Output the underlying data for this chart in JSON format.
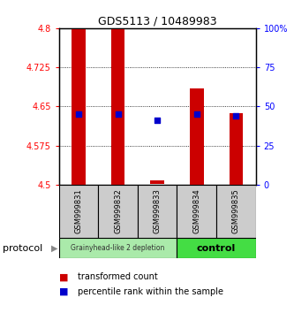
{
  "title": "GDS5113 / 10489983",
  "samples": [
    "GSM999831",
    "GSM999832",
    "GSM999833",
    "GSM999834",
    "GSM999835"
  ],
  "bar_bottom": [
    4.5,
    4.5,
    4.502,
    4.5,
    4.5
  ],
  "bar_top": [
    4.8,
    4.8,
    4.508,
    4.685,
    4.637
  ],
  "blue_y": [
    4.636,
    4.636,
    4.623,
    4.636,
    4.632
  ],
  "ylim_left": [
    4.5,
    4.8
  ],
  "ylim_right": [
    0,
    100
  ],
  "yticks_left": [
    4.5,
    4.575,
    4.65,
    4.725,
    4.8
  ],
  "yticks_right": [
    0,
    25,
    50,
    75,
    100
  ],
  "ytick_labels_left": [
    "4.5",
    "4.575",
    "4.65",
    "4.725",
    "4.8"
  ],
  "ytick_labels_right": [
    "0",
    "25",
    "50",
    "75",
    "100%"
  ],
  "bar_color": "#cc0000",
  "blue_color": "#0000cc",
  "bar_width": 0.35,
  "group_labels": [
    "Grainyhead-like 2 depletion",
    "control"
  ],
  "group_colors": [
    "#aaeaaa",
    "#44dd44"
  ],
  "protocol_label": "protocol",
  "legend_red": "transformed count",
  "legend_blue": "percentile rank within the sample",
  "title_fontsize": 9,
  "tick_fontsize": 7,
  "sample_fontsize": 6,
  "legend_fontsize": 7,
  "protocol_fontsize": 8
}
